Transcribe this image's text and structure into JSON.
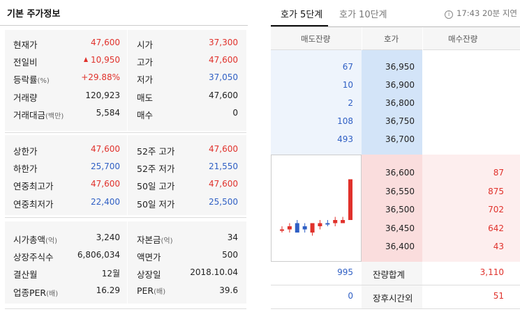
{
  "left": {
    "title": "기본 주가정보",
    "section1": [
      {
        "label": "현재가",
        "label_sub": "",
        "value": "47,600",
        "value_color": "red",
        "label2": "시가",
        "label2_sub": "",
        "value2": "37,300",
        "value2_color": "red"
      },
      {
        "label": "전일비",
        "label_sub": "",
        "value": "10,950",
        "value_color": "red",
        "up_arrow": true,
        "label2": "고가",
        "label2_sub": "",
        "value2": "47,600",
        "value2_color": "red"
      },
      {
        "label": "등락률",
        "label_sub": "(%)",
        "value": "+29.88%",
        "value_color": "red",
        "label2": "저가",
        "label2_sub": "",
        "value2": "37,050",
        "value2_color": "blue"
      },
      {
        "label": "거래량",
        "label_sub": "",
        "value": "120,923",
        "value_color": "black",
        "label2": "매도",
        "label2_sub": "",
        "value2": "47,600",
        "value2_color": "black"
      },
      {
        "label": "거래대금",
        "label_sub": "(백만)",
        "value": "5,584",
        "value_color": "black",
        "label2": "매수",
        "label2_sub": "",
        "value2": "0",
        "value2_color": "black"
      }
    ],
    "section2": [
      {
        "label": "상한가",
        "label_sub": "",
        "value": "47,600",
        "value_color": "red",
        "label2": "52주 고가",
        "label2_sub": "",
        "value2": "47,600",
        "value2_color": "red"
      },
      {
        "label": "하한가",
        "label_sub": "",
        "value": "25,700",
        "value_color": "blue",
        "label2": "52주 저가",
        "label2_sub": "",
        "value2": "21,550",
        "value2_color": "blue"
      },
      {
        "label": "연중최고가",
        "label_sub": "",
        "value": "47,600",
        "value_color": "red",
        "label2": "50일 고가",
        "label2_sub": "",
        "value2": "47,600",
        "value2_color": "red"
      },
      {
        "label": "연중최저가",
        "label_sub": "",
        "value": "22,400",
        "value_color": "blue",
        "label2": "50일 저가",
        "label2_sub": "",
        "value2": "25,500",
        "value2_color": "blue"
      }
    ],
    "section3": [
      {
        "label": "시가총액",
        "label_sub": "(억)",
        "value": "3,240",
        "value_color": "black",
        "label2": "자본금",
        "label2_sub": "(억)",
        "value2": "34",
        "value2_color": "black"
      },
      {
        "label": "상장주식수",
        "label_sub": "",
        "value": "6,806,034",
        "value_color": "black",
        "label2": "액면가",
        "label2_sub": "",
        "value2": "500",
        "value2_color": "black"
      },
      {
        "label": "결산월",
        "label_sub": "",
        "value": "12월",
        "value_color": "black",
        "label2": "상장일",
        "label2_sub": "",
        "value2": "2018.10.04",
        "value2_color": "black"
      },
      {
        "label": "업종PER",
        "label_sub": "(배)",
        "value": "16.29",
        "value_color": "black",
        "label2": "PER",
        "label2_sub": "(배)",
        "value2": "39.6",
        "value2_color": "black"
      }
    ]
  },
  "right": {
    "tabs": [
      "호가 5단계",
      "호가 10단계"
    ],
    "status": "17:43 20분 지연",
    "info_icon": "info-icon",
    "headers": [
      "매도잔량",
      "호가",
      "매수잔량"
    ],
    "asks": [
      {
        "qty": "67",
        "price": "36,950"
      },
      {
        "qty": "10",
        "price": "36,900"
      },
      {
        "qty": "2",
        "price": "36,800"
      },
      {
        "qty": "108",
        "price": "36,750"
      },
      {
        "qty": "493",
        "price": "36,700"
      }
    ],
    "bids": [
      {
        "price": "36,600",
        "qty": "87"
      },
      {
        "price": "36,550",
        "qty": "875"
      },
      {
        "price": "36,500",
        "qty": "702"
      },
      {
        "price": "36,450",
        "qty": "642"
      },
      {
        "price": "36,400",
        "qty": "43"
      }
    ],
    "summary": [
      {
        "left": "995",
        "label": "잔량합계",
        "right": "3,110"
      },
      {
        "left": "0",
        "label": "장후시간외",
        "right": "51"
      }
    ],
    "mini_chart": {
      "candles": [
        {
          "o": 36450,
          "c": 36450,
          "h": 36500,
          "l": 36400,
          "color": "red"
        },
        {
          "o": 36450,
          "c": 36500,
          "h": 36550,
          "l": 36400,
          "color": "red"
        },
        {
          "o": 36550,
          "c": 36400,
          "h": 36600,
          "l": 36400,
          "color": "blue"
        },
        {
          "o": 36500,
          "c": 36450,
          "h": 36550,
          "l": 36400,
          "color": "blue"
        },
        {
          "o": 36400,
          "c": 36550,
          "h": 36550,
          "l": 36350,
          "color": "red"
        },
        {
          "o": 36500,
          "c": 36550,
          "h": 36600,
          "l": 36450,
          "color": "red"
        },
        {
          "o": 36550,
          "c": 36550,
          "h": 36600,
          "l": 36500,
          "color": "blue"
        },
        {
          "o": 36550,
          "c": 36600,
          "h": 36650,
          "l": 36500,
          "color": "red"
        },
        {
          "o": 36550,
          "c": 36600,
          "h": 36650,
          "l": 36550,
          "color": "red"
        },
        {
          "o": 36600,
          "c": 37250,
          "h": 37250,
          "l": 36600,
          "color": "red"
        }
      ],
      "colors": {
        "red": "#e0312b",
        "blue": "#2f5fc4"
      }
    }
  }
}
